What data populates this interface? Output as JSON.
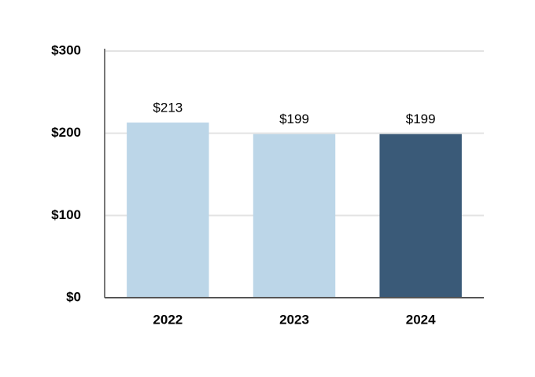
{
  "chart_data": {
    "type": "bar",
    "categories": [
      "2022",
      "2023",
      "2024"
    ],
    "values": [
      213,
      199,
      199
    ],
    "value_labels": [
      "$213",
      "$199",
      "$199"
    ],
    "colors": [
      "#bcd6e8",
      "#bcd6e8",
      "#3a5a78"
    ],
    "ylim": [
      0,
      300
    ],
    "yticks": [
      {
        "value": 0,
        "label": "$0"
      },
      {
        "value": 100,
        "label": "$100"
      },
      {
        "value": 200,
        "label": "$200"
      },
      {
        "value": 300,
        "label": "$300"
      }
    ],
    "grid": true
  }
}
